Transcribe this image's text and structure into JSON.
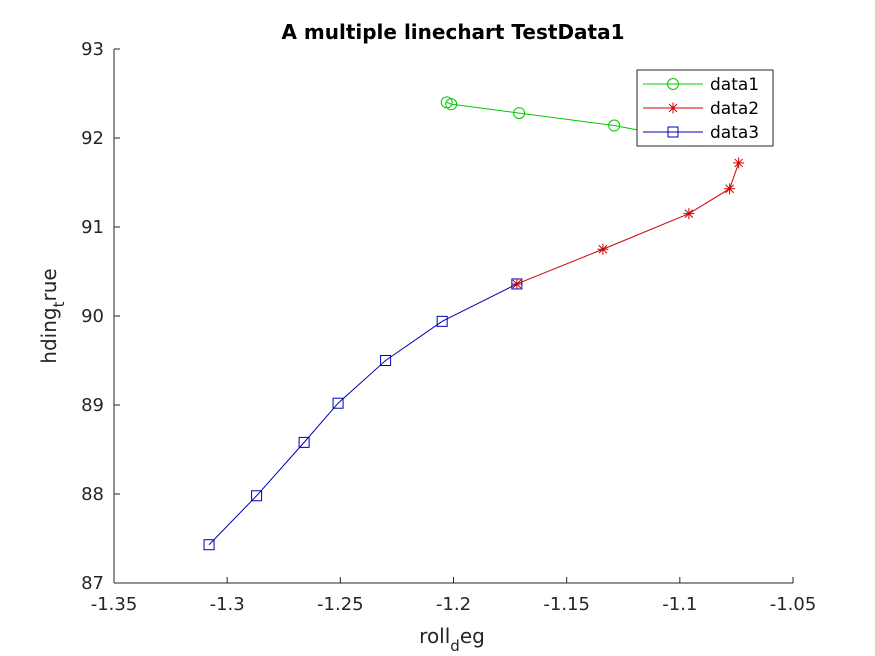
{
  "chart_data": {
    "type": "line",
    "title": "A multiple linechart TestData1",
    "xlabel": {
      "main": "roll",
      "sub": "d",
      "rest": "eg"
    },
    "ylabel": {
      "main": "hding",
      "sub": "t",
      "rest": "rue"
    },
    "xlim": [
      -1.35,
      -1.05
    ],
    "ylim": [
      87,
      93
    ],
    "xticks": [
      -1.35,
      -1.3,
      -1.25,
      -1.2,
      -1.15,
      -1.1,
      -1.05
    ],
    "xtick_labels": [
      "-1.35",
      "-1.3",
      "-1.25",
      "-1.2",
      "-1.15",
      "-1.1",
      "-1.05"
    ],
    "yticks": [
      87,
      88,
      89,
      90,
      91,
      92,
      93
    ],
    "ytick_labels": [
      "87",
      "88",
      "89",
      "90",
      "91",
      "92",
      "93"
    ],
    "grid": false,
    "legend": "top-right",
    "series": [
      {
        "name": "data1",
        "color": "#00c800",
        "marker": "circle",
        "x": [
          -1.203,
          -1.201,
          -1.171,
          -1.129,
          -1.093
        ],
        "y": [
          92.4,
          92.38,
          92.28,
          92.14,
          91.97
        ]
      },
      {
        "name": "data2",
        "color": "#d00000",
        "marker": "star",
        "x": [
          -1.172,
          -1.134,
          -1.096,
          -1.078,
          -1.074
        ],
        "y": [
          90.36,
          90.75,
          91.15,
          91.43,
          91.72
        ]
      },
      {
        "name": "data3",
        "color": "#0000b4",
        "marker": "square",
        "x": [
          -1.308,
          -1.287,
          -1.266,
          -1.251,
          -1.23,
          -1.205,
          -1.172
        ],
        "y": [
          87.43,
          87.98,
          88.58,
          89.02,
          89.5,
          89.94,
          90.36
        ]
      }
    ]
  }
}
